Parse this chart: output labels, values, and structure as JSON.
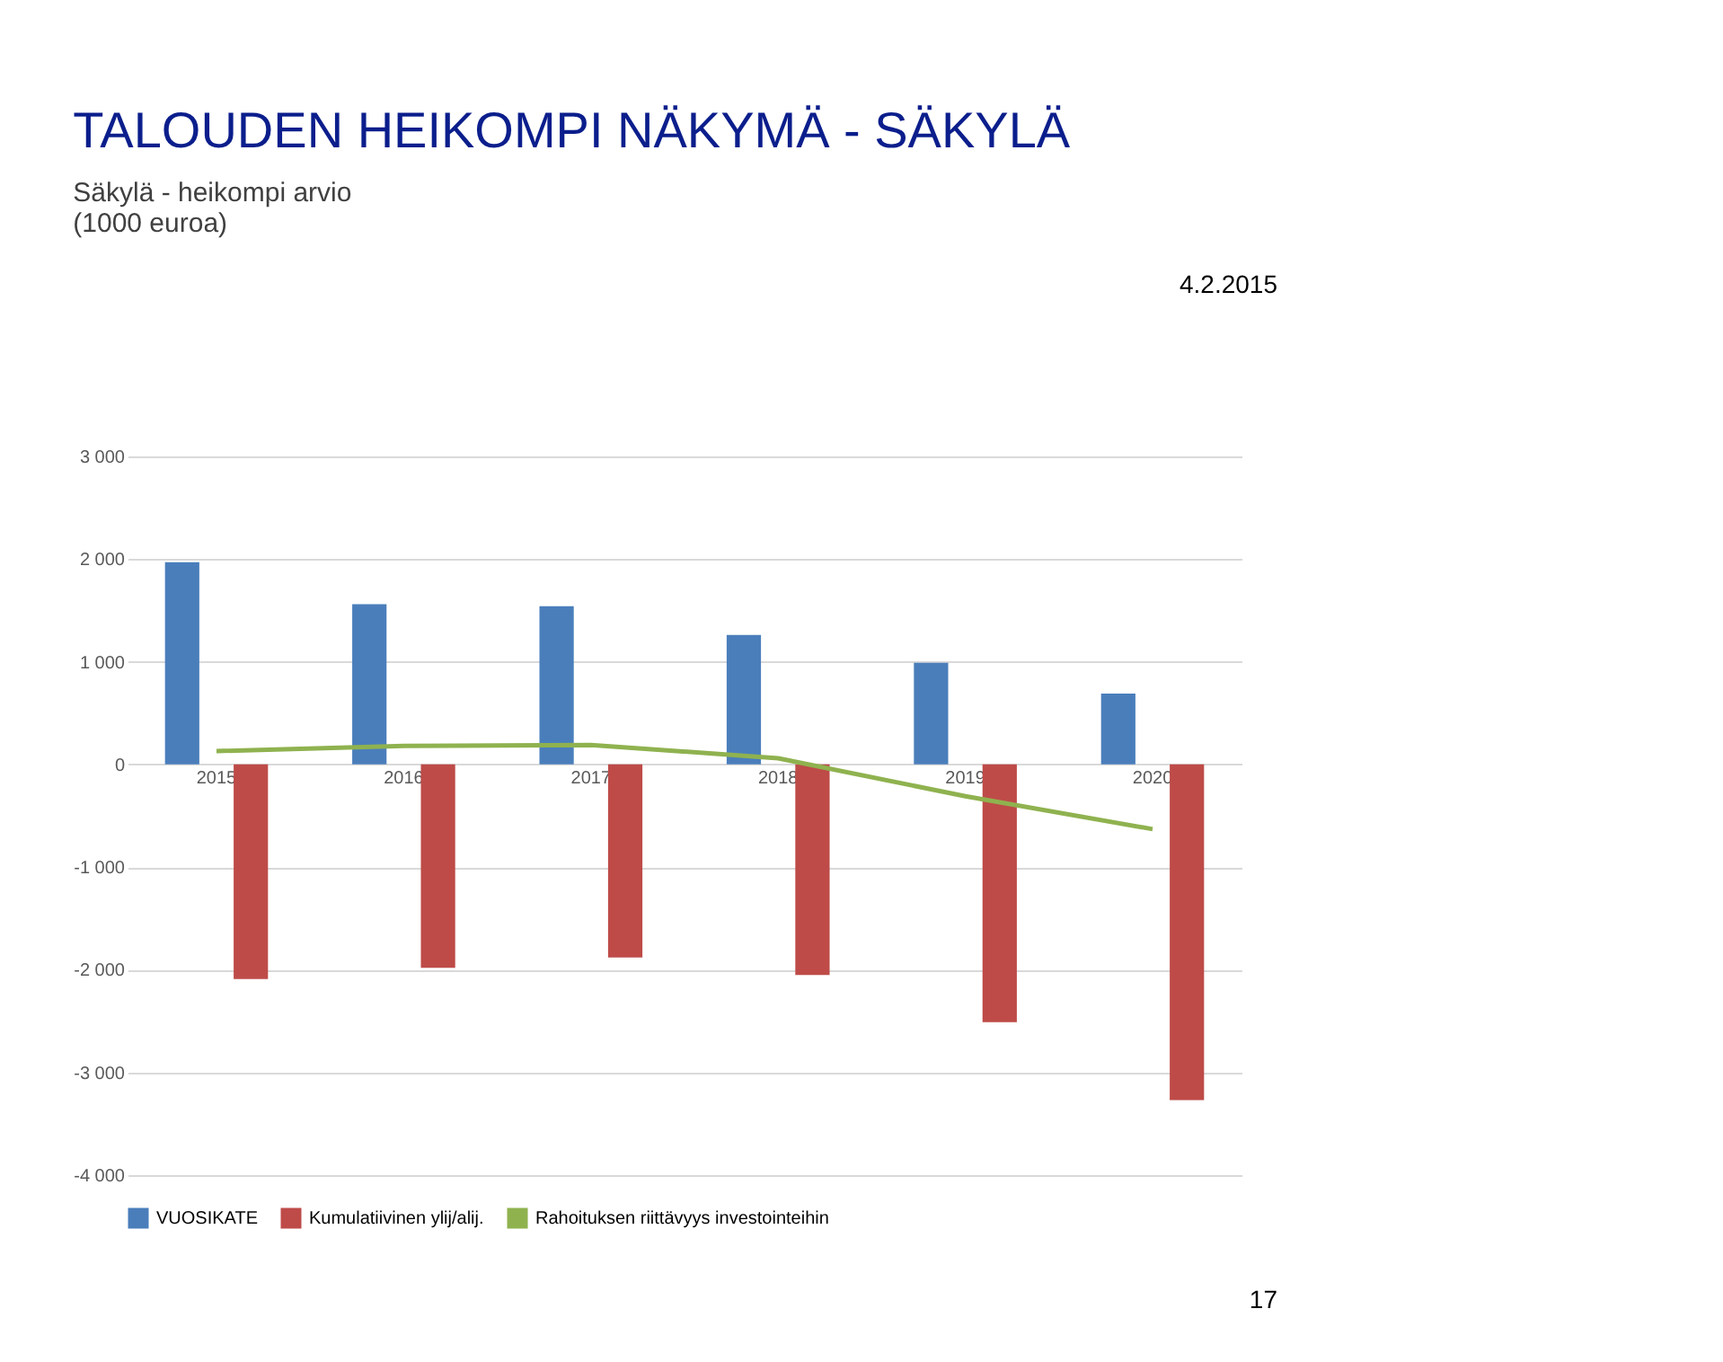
{
  "chart_data": {
    "type": "bar",
    "title": "TALOUDEN HEIKOMPI NÄKYMÄ - SÄKYLÄ",
    "subtitle": [
      "Säkylä - heikompi arvio",
      "(1000 euroa)"
    ],
    "categories": [
      "2015",
      "2016",
      "2017",
      "2018",
      "2019",
      "2020"
    ],
    "series": [
      {
        "name": "VUOSIKATE",
        "color": "#4a7ebb",
        "values": [
          1970,
          1560,
          1540,
          1260,
          990,
          690
        ]
      },
      {
        "name": "Kumulatiivinen ylij/alij.",
        "color": "#be4b48",
        "values": [
          -2090,
          -1980,
          -1880,
          -2050,
          -2510,
          -3270
        ]
      },
      {
        "name": "Rahoituksen riittävyys investointeihin",
        "color": "#8fb24f",
        "type": "line",
        "values": [
          130,
          180,
          190,
          60,
          -310,
          -630
        ]
      }
    ],
    "ylim": [
      -4000,
      3000
    ],
    "yticks": [
      {
        "value": -4000,
        "label": "-4 000"
      },
      {
        "value": -3000,
        "label": "-3 000"
      },
      {
        "value": -2000,
        "label": "-2 000"
      },
      {
        "value": -1000,
        "label": "-1 000"
      },
      0,
      {
        "value": 1000,
        "label": "1 000"
      },
      {
        "value": 2000,
        "label": "2 000"
      },
      {
        "value": 3000,
        "label": "3 000"
      }
    ],
    "grid": "y",
    "legend": "bottom",
    "annotations": [
      "4.2.2015",
      "17"
    ]
  }
}
